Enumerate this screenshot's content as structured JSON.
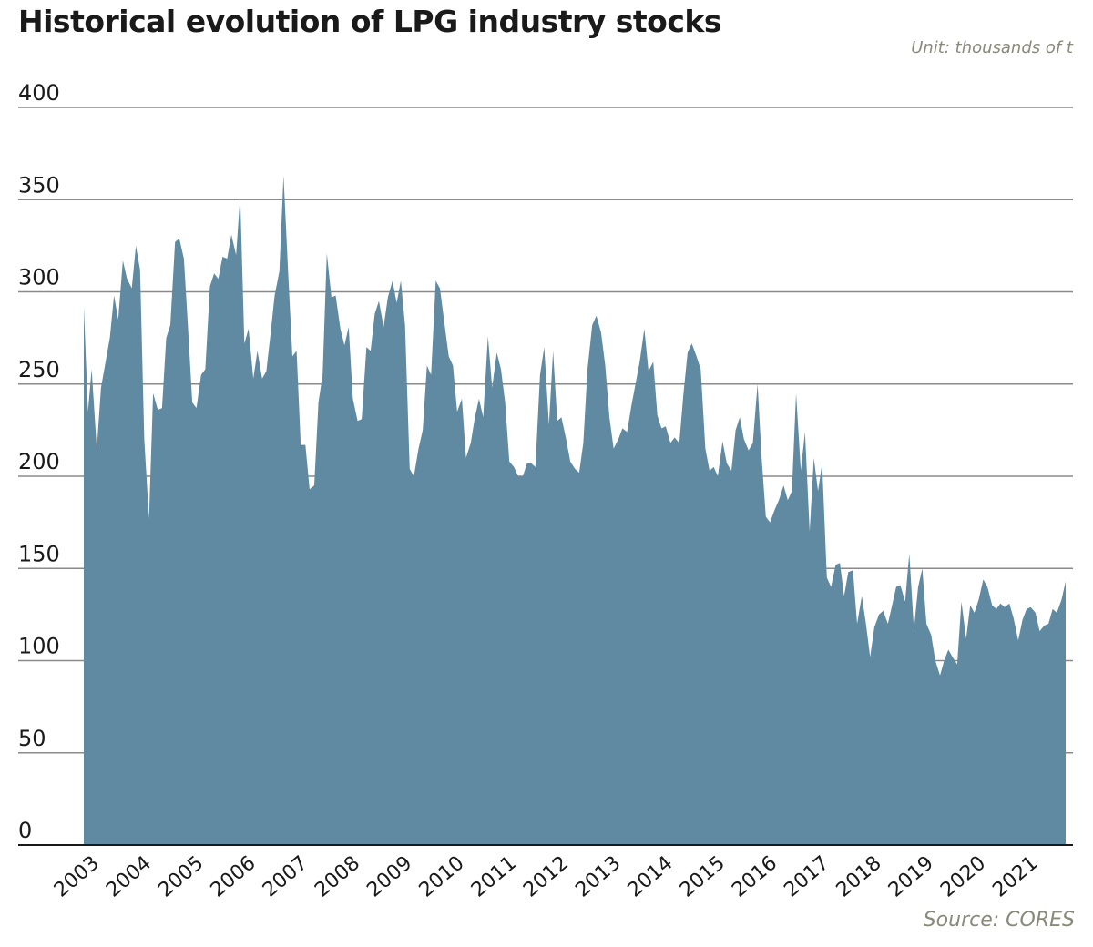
{
  "chart_data": {
    "type": "area",
    "title": "Historical evolution of LPG industry stocks",
    "unit_label": "Unit: thousands of t",
    "source": "Source: CORES",
    "xlabel": "",
    "ylabel": "",
    "ylim": [
      0,
      400
    ],
    "y_ticks": [
      0,
      50,
      100,
      150,
      200,
      250,
      300,
      350,
      400
    ],
    "x_ticks": [
      "2003",
      "2004",
      "2005",
      "2006",
      "2007",
      "2008",
      "2009",
      "2010",
      "2011",
      "2012",
      "2013",
      "2014",
      "2015",
      "2016",
      "2017",
      "2018",
      "2019",
      "2020",
      "2021"
    ],
    "grid": true,
    "series": [
      {
        "name": "LPG industry stocks",
        "color": "#5f8aa2",
        "points": [
          [
            2003.0,
            292
          ],
          [
            2003.08,
            235
          ],
          [
            2003.15,
            258
          ],
          [
            2003.25,
            215
          ],
          [
            2003.33,
            248
          ],
          [
            2003.5,
            275
          ],
          [
            2003.58,
            298
          ],
          [
            2003.66,
            285
          ],
          [
            2003.75,
            317
          ],
          [
            2003.83,
            307
          ],
          [
            2003.92,
            302
          ],
          [
            2004.0,
            325
          ],
          [
            2004.08,
            312
          ],
          [
            2004.16,
            220
          ],
          [
            2004.25,
            177
          ],
          [
            2004.33,
            245
          ],
          [
            2004.42,
            236
          ],
          [
            2004.5,
            237
          ],
          [
            2004.58,
            275
          ],
          [
            2004.66,
            282
          ],
          [
            2004.75,
            327
          ],
          [
            2004.83,
            329
          ],
          [
            2004.92,
            318
          ],
          [
            2005.0,
            280
          ],
          [
            2005.08,
            240
          ],
          [
            2005.16,
            237
          ],
          [
            2005.25,
            255
          ],
          [
            2005.33,
            258
          ],
          [
            2005.42,
            303
          ],
          [
            2005.5,
            310
          ],
          [
            2005.58,
            307
          ],
          [
            2005.66,
            319
          ],
          [
            2005.75,
            318
          ],
          [
            2005.83,
            331
          ],
          [
            2005.92,
            320
          ],
          [
            2006.0,
            352
          ],
          [
            2006.08,
            272
          ],
          [
            2006.16,
            280
          ],
          [
            2006.25,
            253
          ],
          [
            2006.33,
            268
          ],
          [
            2006.42,
            253
          ],
          [
            2006.5,
            257
          ],
          [
            2006.58,
            277
          ],
          [
            2006.66,
            298
          ],
          [
            2006.75,
            311
          ],
          [
            2006.83,
            363
          ],
          [
            2006.92,
            310
          ],
          [
            2007.0,
            265
          ],
          [
            2007.08,
            268
          ],
          [
            2007.16,
            217
          ],
          [
            2007.25,
            217
          ],
          [
            2007.33,
            193
          ],
          [
            2007.42,
            195
          ],
          [
            2007.5,
            240
          ],
          [
            2007.58,
            255
          ],
          [
            2007.66,
            321
          ],
          [
            2007.75,
            297
          ],
          [
            2007.83,
            298
          ],
          [
            2007.92,
            280
          ],
          [
            2008.0,
            271
          ],
          [
            2008.08,
            281
          ],
          [
            2008.16,
            242
          ],
          [
            2008.25,
            230
          ],
          [
            2008.33,
            231
          ],
          [
            2008.42,
            270
          ],
          [
            2008.5,
            268
          ],
          [
            2008.58,
            288
          ],
          [
            2008.66,
            295
          ],
          [
            2008.75,
            281
          ],
          [
            2008.83,
            297
          ],
          [
            2008.92,
            306
          ],
          [
            2009.0,
            294
          ],
          [
            2009.08,
            306
          ],
          [
            2009.16,
            282
          ],
          [
            2009.25,
            204
          ],
          [
            2009.33,
            200
          ],
          [
            2009.42,
            215
          ],
          [
            2009.5,
            225
          ],
          [
            2009.58,
            260
          ],
          [
            2009.66,
            255
          ],
          [
            2009.75,
            306
          ],
          [
            2009.83,
            302
          ],
          [
            2009.92,
            282
          ],
          [
            2010.0,
            265
          ],
          [
            2010.08,
            260
          ],
          [
            2010.16,
            235
          ],
          [
            2010.25,
            242
          ],
          [
            2010.33,
            210
          ],
          [
            2010.42,
            218
          ],
          [
            2010.5,
            232
          ],
          [
            2010.58,
            242
          ],
          [
            2010.66,
            232
          ],
          [
            2010.75,
            276
          ],
          [
            2010.83,
            248
          ],
          [
            2010.92,
            267
          ],
          [
            2011.0,
            258
          ],
          [
            2011.08,
            240
          ],
          [
            2011.16,
            208
          ],
          [
            2011.25,
            205
          ],
          [
            2011.33,
            200
          ],
          [
            2011.42,
            200
          ],
          [
            2011.5,
            207
          ],
          [
            2011.58,
            207
          ],
          [
            2011.66,
            205
          ],
          [
            2011.75,
            255
          ],
          [
            2011.83,
            270
          ],
          [
            2011.92,
            228
          ],
          [
            2012.0,
            268
          ],
          [
            2012.08,
            230
          ],
          [
            2012.16,
            232
          ],
          [
            2012.25,
            220
          ],
          [
            2012.33,
            208
          ],
          [
            2012.42,
            204
          ],
          [
            2012.5,
            202
          ],
          [
            2012.58,
            218
          ],
          [
            2012.66,
            258
          ],
          [
            2012.75,
            282
          ],
          [
            2012.83,
            287
          ],
          [
            2012.92,
            278
          ],
          [
            2013.0,
            260
          ],
          [
            2013.08,
            232
          ],
          [
            2013.16,
            215
          ],
          [
            2013.25,
            220
          ],
          [
            2013.33,
            226
          ],
          [
            2013.42,
            224
          ],
          [
            2013.5,
            238
          ],
          [
            2013.58,
            250
          ],
          [
            2013.66,
            262
          ],
          [
            2013.75,
            280
          ],
          [
            2013.83,
            257
          ],
          [
            2013.92,
            262
          ],
          [
            2014.0,
            233
          ],
          [
            2014.08,
            226
          ],
          [
            2014.16,
            227
          ],
          [
            2014.25,
            218
          ],
          [
            2014.33,
            221
          ],
          [
            2014.42,
            218
          ],
          [
            2014.5,
            245
          ],
          [
            2014.58,
            267
          ],
          [
            2014.66,
            272
          ],
          [
            2014.75,
            265
          ],
          [
            2014.83,
            258
          ],
          [
            2014.92,
            215
          ],
          [
            2015.0,
            203
          ],
          [
            2015.08,
            205
          ],
          [
            2015.16,
            200
          ],
          [
            2015.25,
            219
          ],
          [
            2015.33,
            207
          ],
          [
            2015.42,
            203
          ],
          [
            2015.5,
            225
          ],
          [
            2015.58,
            232
          ],
          [
            2015.66,
            220
          ],
          [
            2015.75,
            214
          ],
          [
            2015.83,
            218
          ],
          [
            2015.92,
            250
          ],
          [
            2016.0,
            210
          ],
          [
            2016.08,
            178
          ],
          [
            2016.16,
            175
          ],
          [
            2016.25,
            182
          ],
          [
            2016.33,
            187
          ],
          [
            2016.42,
            195
          ],
          [
            2016.5,
            187
          ],
          [
            2016.58,
            192
          ],
          [
            2016.66,
            245
          ],
          [
            2016.75,
            203
          ],
          [
            2016.83,
            224
          ],
          [
            2016.92,
            170
          ],
          [
            2017.0,
            210
          ],
          [
            2017.08,
            192
          ],
          [
            2017.16,
            207
          ],
          [
            2017.25,
            145
          ],
          [
            2017.33,
            140
          ],
          [
            2017.42,
            152
          ],
          [
            2017.5,
            153
          ],
          [
            2017.58,
            135
          ],
          [
            2017.66,
            148
          ],
          [
            2017.75,
            149
          ],
          [
            2017.83,
            120
          ],
          [
            2017.92,
            135
          ],
          [
            2018.0,
            120
          ],
          [
            2018.08,
            102
          ],
          [
            2018.16,
            118
          ],
          [
            2018.25,
            125
          ],
          [
            2018.33,
            127
          ],
          [
            2018.42,
            120
          ],
          [
            2018.5,
            130
          ],
          [
            2018.58,
            140
          ],
          [
            2018.66,
            141
          ],
          [
            2018.75,
            132
          ],
          [
            2018.83,
            158
          ],
          [
            2018.92,
            117
          ],
          [
            2019.0,
            140
          ],
          [
            2019.08,
            150
          ],
          [
            2019.16,
            120
          ],
          [
            2019.25,
            114
          ],
          [
            2019.33,
            100
          ],
          [
            2019.42,
            92
          ],
          [
            2019.5,
            100
          ],
          [
            2019.58,
            106
          ],
          [
            2019.66,
            102
          ],
          [
            2019.75,
            98
          ],
          [
            2019.83,
            132
          ],
          [
            2019.92,
            112
          ],
          [
            2020.0,
            130
          ],
          [
            2020.08,
            126
          ],
          [
            2020.16,
            133
          ],
          [
            2020.25,
            144
          ],
          [
            2020.33,
            140
          ],
          [
            2020.42,
            130
          ],
          [
            2020.5,
            128
          ],
          [
            2020.58,
            131
          ],
          [
            2020.66,
            129
          ],
          [
            2020.75,
            131
          ],
          [
            2020.83,
            123
          ],
          [
            2020.92,
            111
          ],
          [
            2021.0,
            122
          ],
          [
            2021.08,
            128
          ],
          [
            2021.16,
            129
          ],
          [
            2021.25,
            126
          ],
          [
            2021.33,
            116
          ],
          [
            2021.42,
            119
          ],
          [
            2021.5,
            120
          ],
          [
            2021.58,
            128
          ],
          [
            2021.66,
            126
          ],
          [
            2021.75,
            133
          ],
          [
            2021.83,
            143
          ]
        ]
      }
    ]
  }
}
